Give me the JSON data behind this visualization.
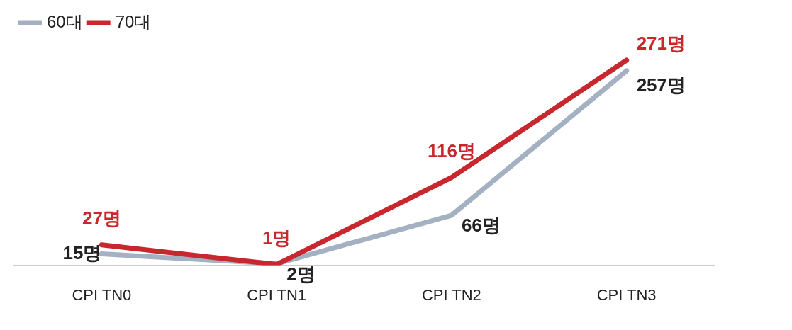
{
  "chart_data": {
    "type": "line",
    "categories": [
      "CPI TN0",
      "CPI TN1",
      "CPI TN2",
      "CPI TN3"
    ],
    "series": [
      {
        "name": "60대",
        "color": "#a3b1c2",
        "values": [
          15,
          2,
          66,
          257
        ],
        "value_labels": [
          "15명",
          "2명",
          "66명",
          "257명"
        ]
      },
      {
        "name": "70대",
        "color": "#c8282d",
        "values": [
          27,
          1,
          116,
          271
        ],
        "value_labels": [
          "27명",
          "1명",
          "116명",
          "271명"
        ]
      }
    ],
    "legend": "top left",
    "tick_labels": "x",
    "grid": false,
    "marker": "none",
    "line_style": "solid"
  }
}
